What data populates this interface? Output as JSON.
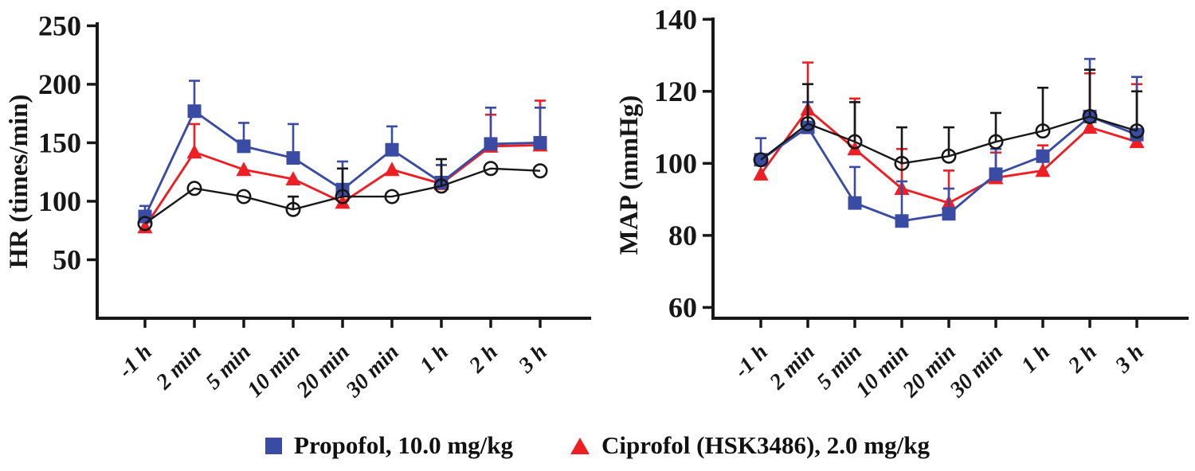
{
  "chart_data": [
    {
      "id": "hr",
      "type": "line",
      "ylabel": "HR（times/min）",
      "xlabel": "",
      "yticks": [
        50,
        100,
        150,
        200,
        250
      ],
      "ymin": 0,
      "ymax": 253,
      "grid": false,
      "error_bars": "upper-only",
      "categories": [
        "-1 h",
        "2 min",
        "5 min",
        "10 min",
        "20 min",
        "30 min",
        "1 h",
        "2 h",
        "3 h"
      ],
      "series": [
        {
          "name": "Propofol, 10.0 mg/kg",
          "marker": "square",
          "color": "#3a4ba3",
          "z": 2,
          "values": [
            87,
            177,
            147,
            137,
            110,
            144,
            116,
            149,
            150
          ],
          "upper": [
            96,
            203,
            167,
            166,
            134,
            164,
            131,
            180,
            180
          ]
        },
        {
          "name": "Ciprofol (HSK3486), 2.0 mg/kg",
          "marker": "triangle",
          "color": "#ed1f25",
          "z": 1,
          "values": [
            78,
            142,
            127,
            119,
            99,
            127,
            115,
            147,
            148
          ],
          "upper": [
            84,
            166,
            127,
            119,
            99,
            127,
            131,
            174,
            186
          ]
        },
        {
          "name": "",
          "marker": "open-circle",
          "color": "#171717",
          "z": 3,
          "values": [
            81,
            111,
            104,
            93,
            104,
            104,
            113,
            128,
            126
          ],
          "upper": [
            81,
            111,
            104,
            104,
            128,
            104,
            136,
            128,
            126
          ]
        }
      ]
    },
    {
      "id": "map",
      "type": "line",
      "ylabel": "MAP（mmHg）",
      "xlabel": "",
      "yticks": [
        60,
        80,
        100,
        120,
        140
      ],
      "ymin": 57,
      "ymax": 140.5,
      "grid": false,
      "error_bars": "upper-only",
      "categories": [
        "-1 h",
        "2 min",
        "5 min",
        "10 min",
        "20 min",
        "30 min",
        "1 h",
        "2 h",
        "3 h"
      ],
      "series": [
        {
          "name": "Propofol, 10.0 mg/kg",
          "marker": "square",
          "color": "#3a4ba3",
          "z": 2,
          "values": [
            101,
            110,
            89,
            84,
            86,
            97,
            102,
            113,
            108
          ],
          "upper": [
            107,
            117,
            99,
            95,
            93,
            104,
            102,
            129,
            124
          ]
        },
        {
          "name": "Ciprofol (HSK3486), 2.0 mg/kg",
          "marker": "triangle",
          "color": "#ed1f25",
          "z": 1,
          "values": [
            97,
            115,
            104,
            93,
            89,
            96,
            98,
            110,
            106
          ],
          "upper": [
            97,
            128,
            118,
            104,
            98,
            103,
            105,
            125,
            122
          ]
        },
        {
          "name": "",
          "marker": "open-circle",
          "color": "#171717",
          "z": 3,
          "values": [
            101,
            111,
            106,
            100,
            102,
            106,
            109,
            113,
            109
          ],
          "upper": [
            101,
            122,
            117,
            110,
            110,
            114,
            121,
            126,
            120
          ]
        }
      ]
    }
  ]
}
